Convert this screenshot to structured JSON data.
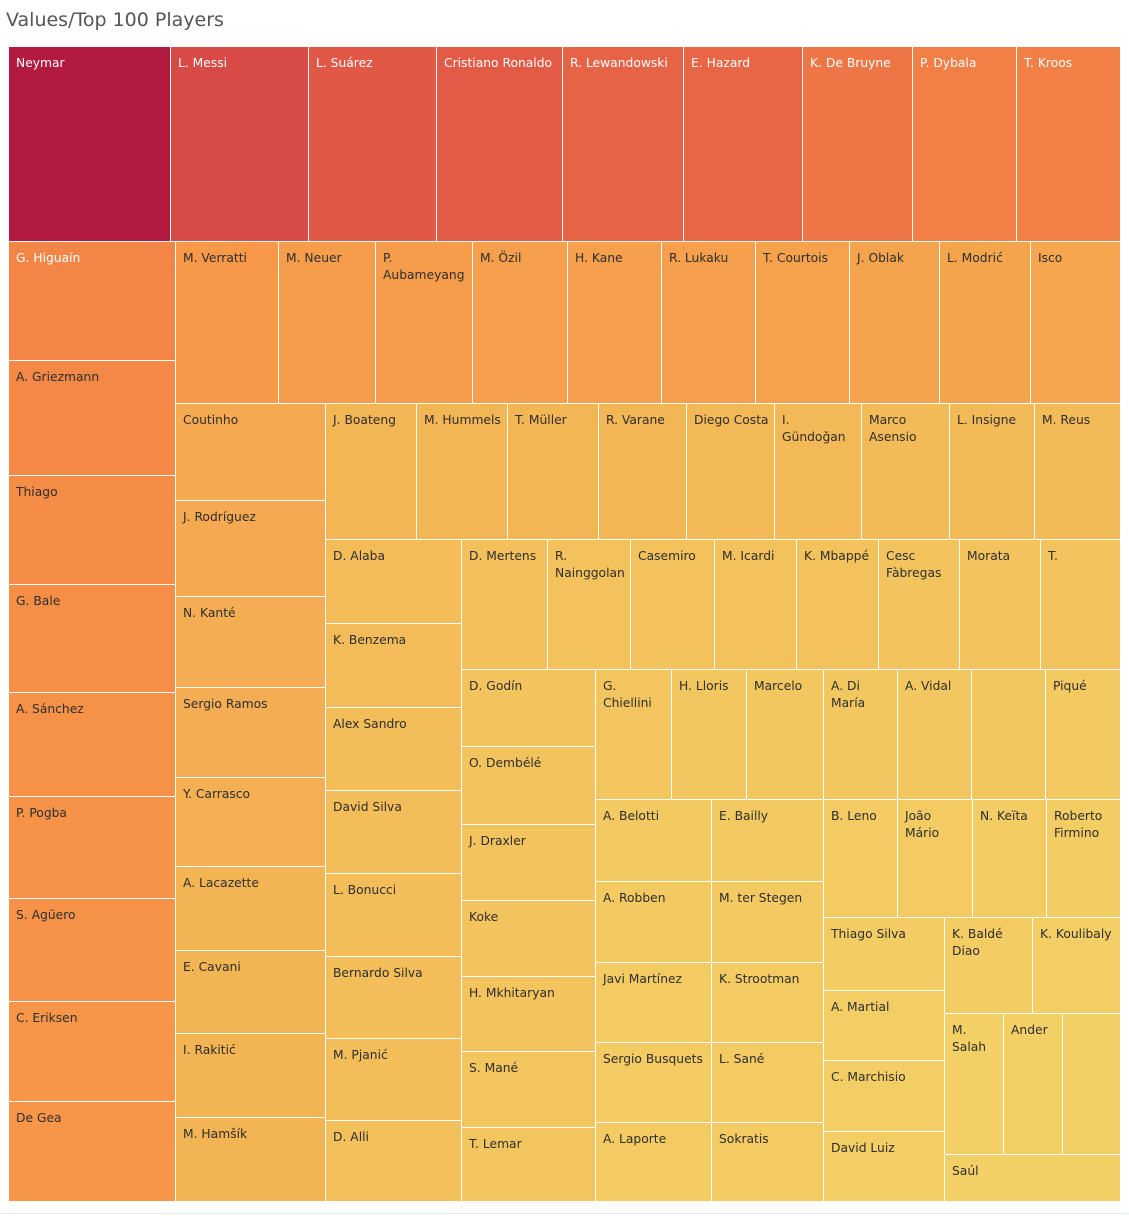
{
  "page": {
    "title": "Values/Top 100 Players"
  },
  "chart_data": {
    "type": "treemap",
    "title": "Values/Top 100 Players",
    "measure": "Values",
    "color_scale": [
      "#b21a3f",
      "#f3d066"
    ],
    "items": [
      {
        "label": "Neymar",
        "value": 100
      },
      {
        "label": "L. Messi",
        "value": 89
      },
      {
        "label": "L. Suárez",
        "value": 83
      },
      {
        "label": "Cristiano Ronaldo",
        "value": 82
      },
      {
        "label": "R. Lewandowski",
        "value": 79
      },
      {
        "label": "E. Hazard",
        "value": 78
      },
      {
        "label": "K. De Bruyne",
        "value": 72
      },
      {
        "label": "P. Dybala",
        "value": 68
      },
      {
        "label": "T. Kroos",
        "value": 68
      },
      {
        "label": "G. Higuaín",
        "value": 65
      },
      {
        "label": "A. Griezmann",
        "value": 63
      },
      {
        "label": "Thiago",
        "value": 60
      },
      {
        "label": "G. Bale",
        "value": 59
      },
      {
        "label": "A. Sánchez",
        "value": 57
      },
      {
        "label": "P. Pogba",
        "value": 56
      },
      {
        "label": "S. Agüero",
        "value": 56
      },
      {
        "label": "C. Eriksen",
        "value": 54
      },
      {
        "label": "De Gea",
        "value": 55
      },
      {
        "label": "M. Verratti",
        "value": 53
      },
      {
        "label": "M. Neuer",
        "value": 51
      },
      {
        "label": "P. Aubameyang",
        "value": 51
      },
      {
        "label": "M. Özil",
        "value": 50
      },
      {
        "label": "H. Kane",
        "value": 50
      },
      {
        "label": "R. Lukaku",
        "value": 50
      },
      {
        "label": "T. Courtois",
        "value": 49
      },
      {
        "label": "J. Oblak",
        "value": 48
      },
      {
        "label": "L. Modrić",
        "value": 48
      },
      {
        "label": "Isco",
        "value": 47
      },
      {
        "label": "Coutinho",
        "value": 46
      },
      {
        "label": "J. Rodríguez",
        "value": 46
      },
      {
        "label": "N. Kanté",
        "value": 44
      },
      {
        "label": "Sergio Ramos",
        "value": 44
      },
      {
        "label": "Y. Carrasco",
        "value": 43
      },
      {
        "label": "A. Lacazette",
        "value": 41
      },
      {
        "label": "E. Cavani",
        "value": 41
      },
      {
        "label": "I. Rakitić",
        "value": 41
      },
      {
        "label": "M. Hamšík",
        "value": 41
      },
      {
        "label": "J. Boateng",
        "value": 40
      },
      {
        "label": "M. Hummels",
        "value": 40
      },
      {
        "label": "T. Müller",
        "value": 40
      },
      {
        "label": "R. Varane",
        "value": 40
      },
      {
        "label": "Diego Costa",
        "value": 39
      },
      {
        "label": "I. Gündoğan",
        "value": 39
      },
      {
        "label": "Marco Asensio",
        "value": 38
      },
      {
        "label": "L. Insigne",
        "value": 38
      },
      {
        "label": "M. Reus",
        "value": 38
      },
      {
        "label": "D. Alaba",
        "value": 37
      },
      {
        "label": "K. Benzema",
        "value": 37
      },
      {
        "label": "Alex Sandro",
        "value": 36
      },
      {
        "label": "David Silva",
        "value": 36
      },
      {
        "label": "L. Bonucci",
        "value": 36
      },
      {
        "label": "Bernardo Silva",
        "value": 36
      },
      {
        "label": "M. Pjanić",
        "value": 36
      },
      {
        "label": "D. Alli",
        "value": 35
      },
      {
        "label": "D. Mertens",
        "value": 35
      },
      {
        "label": "R. Nainggolan",
        "value": 34
      },
      {
        "label": "Casemiro",
        "value": 34
      },
      {
        "label": "M. Icardi",
        "value": 34
      },
      {
        "label": "K. Mbappé",
        "value": 34
      },
      {
        "label": "Cesc Fàbregas",
        "value": 33
      },
      {
        "label": "Morata",
        "value": 33
      },
      {
        "label": "T.",
        "value": 33
      },
      {
        "label": "D. Godín",
        "value": 33
      },
      {
        "label": "O. Dembélé",
        "value": 33
      },
      {
        "label": "J. Draxler",
        "value": 33
      },
      {
        "label": "Koke",
        "value": 33
      },
      {
        "label": "H. Mkhitaryan",
        "value": 33
      },
      {
        "label": "S. Mané",
        "value": 32
      },
      {
        "label": "T. Lemar",
        "value": 32
      },
      {
        "label": "G. Chiellini",
        "value": 32
      },
      {
        "label": "H. Lloris",
        "value": 31
      },
      {
        "label": "Marcelo",
        "value": 31
      },
      {
        "label": "A. Di María",
        "value": 31
      },
      {
        "label": "A. Vidal",
        "value": 31
      },
      {
        "label": "",
        "value": 31
      },
      {
        "label": "Piqué",
        "value": 30
      },
      {
        "label": "A. Belotti",
        "value": 30
      },
      {
        "label": "E. Bailly",
        "value": 30
      },
      {
        "label": "A. Robben",
        "value": 30
      },
      {
        "label": "M. ter Stegen",
        "value": 30
      },
      {
        "label": "Javi Martínez",
        "value": 29
      },
      {
        "label": "K. Strootman",
        "value": 29
      },
      {
        "label": "Sergio Busquets",
        "value": 29
      },
      {
        "label": "L. Sané",
        "value": 29
      },
      {
        "label": "A. Laporte",
        "value": 29
      },
      {
        "label": "Sokratis",
        "value": 29
      },
      {
        "label": "B. Leno",
        "value": 29
      },
      {
        "label": "João Mário",
        "value": 29
      },
      {
        "label": "N. Keïta",
        "value": 28
      },
      {
        "label": "Roberto Firmino",
        "value": 28
      },
      {
        "label": "Thiago Silva",
        "value": 28
      },
      {
        "label": "K. Baldé Diao",
        "value": 28
      },
      {
        "label": "K. Koulibaly",
        "value": 27
      },
      {
        "label": "A. Martial",
        "value": 27
      },
      {
        "label": "C. Marchisio",
        "value": 27
      },
      {
        "label": "David Luiz",
        "value": 27
      },
      {
        "label": "M. Salah",
        "value": 26
      },
      {
        "label": "Ander",
        "value": 26
      },
      {
        "label": "",
        "value": 26
      },
      {
        "label": "Saúl",
        "value": 26
      }
    ]
  }
}
